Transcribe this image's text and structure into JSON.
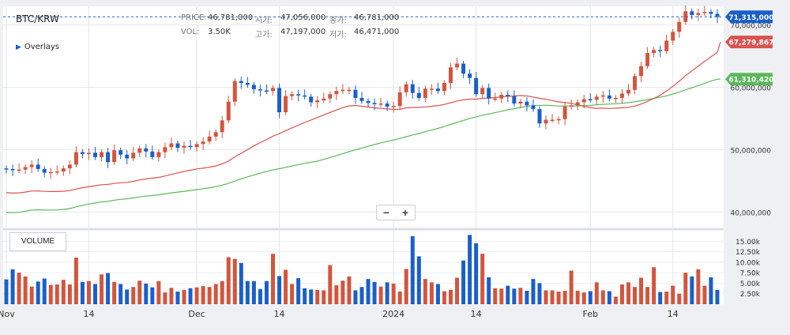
{
  "symbol": "BTC/KRW",
  "overlays_label": "Overlays",
  "volume_label": "VOLUME",
  "info": {
    "price_label": "PRICE:",
    "price": "46,781,000",
    "open_label": "시가:",
    "open": "47,056,000",
    "close_label": "종가:",
    "close": "46,781,000",
    "vol_label": "VOL:",
    "vol": "3.50K",
    "high_label": "고가:",
    "high": "47,197,000",
    "low_label": "저가:",
    "low": "46,471,000"
  },
  "zoom": {
    "minus": "−",
    "plus": "+"
  },
  "colors": {
    "up": "#d2553d",
    "down": "#1a5fc9",
    "ma_fast": "#d9534f",
    "ma_slow": "#5cb85c"
  },
  "chart_data": {
    "type": "candlestick",
    "price_axis": {
      "min": 37500000,
      "max": 73000000,
      "ticks": [
        40000000,
        50000000,
        60000000,
        70000000
      ],
      "tick_labels": [
        "40,000,000",
        "50,000,000",
        "60,000,000",
        "70,000,000"
      ]
    },
    "volume_axis": {
      "min": 0,
      "max": 17500,
      "ticks": [
        2500,
        5000,
        7500,
        10000,
        12500,
        15000
      ],
      "tick_labels": [
        "2.50k",
        "5.00k",
        "7.50k",
        "10.00k",
        "12.50k",
        "15.00k"
      ]
    },
    "x_labels": [
      {
        "i": 0,
        "text": "Nov"
      },
      {
        "i": 13,
        "text": "14"
      },
      {
        "i": 30,
        "text": "Dec"
      },
      {
        "i": 43,
        "text": "14"
      },
      {
        "i": 61,
        "text": "2024"
      },
      {
        "i": 74,
        "text": "14"
      },
      {
        "i": 92,
        "text": "Feb"
      },
      {
        "i": 105,
        "text": "14"
      }
    ],
    "current_price": {
      "value": 71315000,
      "label": "71,315,000"
    },
    "ma_fast_last": {
      "value": 67279867,
      "label": "67,279,867"
    },
    "ma_slow_last": {
      "value": 61310420,
      "label": "61,310,420"
    },
    "closes": [
      46.9,
      46.7,
      46.8,
      47.2,
      47.6,
      46.9,
      46.3,
      46.4,
      46.5,
      47.0,
      47.6,
      49.6,
      49.3,
      49.5,
      48.8,
      49.6,
      48.0,
      49.9,
      49.2,
      48.6,
      49.5,
      50.2,
      49.7,
      48.8,
      49.6,
      50.4,
      51.0,
      50.3,
      50.6,
      50.4,
      50.9,
      51.3,
      52.1,
      52.8,
      54.7,
      57.7,
      61.0,
      60.7,
      60.4,
      59.7,
      59.5,
      59.4,
      59.9,
      56.0,
      58.6,
      58.9,
      58.7,
      58.5,
      57.6,
      57.9,
      58.2,
      58.9,
      59.4,
      59.6,
      59.6,
      58.3,
      57.8,
      57.5,
      57.3,
      57.4,
      56.9,
      57.0,
      59.2,
      60.5,
      59.1,
      58.3,
      59.8,
      59.8,
      59.4,
      60.7,
      63.2,
      63.8,
      62.2,
      61.5,
      58.9,
      59.9,
      58.2,
      58.2,
      58.8,
      58.6,
      57.4,
      57.7,
      57.1,
      56.5,
      54.2,
      54.8,
      54.8,
      54.9,
      56.9,
      57.1,
      57.6,
      58.1,
      58.0,
      58.5,
      58.7,
      58.2,
      58.3,
      59.0,
      59.6,
      61.8,
      63.4,
      65.5,
      66.0,
      65.8,
      67.5,
      68.9,
      70.5,
      72.2,
      71.6,
      71.9,
      72.1,
      71.8,
      71.3
    ],
    "volumes": [
      5900,
      8300,
      7500,
      6600,
      4200,
      5400,
      6100,
      4600,
      4700,
      5800,
      4700,
      11100,
      5300,
      5500,
      4800,
      7100,
      7400,
      5300,
      4800,
      3500,
      4100,
      5600,
      4900,
      4000,
      5500,
      2800,
      3900,
      3000,
      3400,
      3800,
      4000,
      4300,
      4100,
      4800,
      5500,
      11200,
      10800,
      9800,
      5500,
      5500,
      3600,
      5500,
      12000,
      6700,
      8200,
      4800,
      6200,
      3800,
      3500,
      3400,
      3300,
      9300,
      4500,
      5600,
      6600,
      3300,
      4100,
      6000,
      5300,
      4200,
      5200,
      4900,
      3000,
      8400,
      16200,
      11400,
      6000,
      5200,
      4800,
      3100,
      3400,
      6300,
      10400,
      16500,
      14500,
      12000,
      6400,
      3800,
      3700,
      4400,
      3700,
      3900,
      3200,
      6000,
      5000,
      3300,
      3300,
      3000,
      3200,
      8000,
      3200,
      2800,
      3100,
      5200,
      3300,
      3100,
      1800,
      4700,
      5200,
      4100,
      6300,
      4100,
      8800,
      2900,
      3000,
      4400,
      2500,
      7500,
      6600,
      8300,
      4400,
      6400,
      3400,
      3600,
      500
    ]
  }
}
